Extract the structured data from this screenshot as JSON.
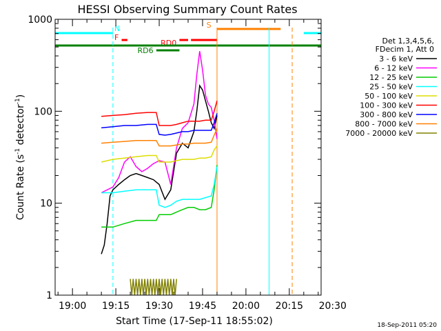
{
  "chart_data": {
    "type": "line",
    "title": "HESSI Observing Summary Count Rates",
    "xlabel": "Start Time (17-Sep-11 18:55:02)",
    "ylabel": "Count Rate (s⁻¹ detector⁻¹)",
    "ylabel_main": "Count Rate (s",
    "ylabel_mid": " detector",
    "ylabel_end": ")",
    "yscale": "log",
    "ylim": [
      1,
      1000
    ],
    "xlim_minutes": [
      -6,
      86
    ],
    "x_ticks": [
      {
        "m": 0,
        "label": "19:00"
      },
      {
        "m": 15,
        "label": "19:15"
      },
      {
        "m": 30,
        "label": "19:30"
      },
      {
        "m": 45,
        "label": "19:45"
      },
      {
        "m": 60,
        "label": "20:00"
      },
      {
        "m": 75,
        "label": "20:15"
      },
      {
        "m": 90,
        "label": "20:30"
      }
    ],
    "y_ticks": [
      {
        "v": 1,
        "label": "1"
      },
      {
        "v": 10,
        "label": "10"
      },
      {
        "v": 100,
        "label": "100"
      },
      {
        "v": 1000,
        "label": "1000"
      }
    ],
    "legend_header": [
      "Det 1,3,4,5,6,",
      "FDecim 1, Att 0"
    ],
    "series": [
      {
        "name": "3 - 6 keV",
        "color": "#000000",
        "x": [
          10,
          11,
          12,
          13,
          14,
          16,
          18,
          20,
          22,
          24,
          26,
          28,
          30,
          32,
          34,
          36,
          38,
          40,
          42,
          43,
          44,
          45,
          46,
          47,
          48,
          49,
          50
        ],
        "y": [
          2.8,
          3.5,
          6,
          12,
          14,
          16,
          18,
          20,
          21,
          20,
          19,
          18,
          16,
          11,
          14,
          35,
          45,
          40,
          60,
          100,
          190,
          170,
          130,
          100,
          75,
          65,
          90
        ]
      },
      {
        "name": "6 - 12 keV",
        "color": "#ff00ff",
        "x": [
          10,
          14,
          16,
          18,
          20,
          22,
          24,
          26,
          28,
          30,
          32,
          34,
          36,
          38,
          40,
          42,
          43,
          44,
          45,
          46,
          47,
          48,
          49,
          50
        ],
        "y": [
          13,
          15,
          19,
          28,
          32,
          25,
          22,
          24,
          27,
          29,
          28,
          16,
          40,
          65,
          75,
          120,
          250,
          450,
          280,
          150,
          120,
          110,
          80,
          50
        ]
      },
      {
        "name": "12 - 25 keV",
        "color": "#00cc00",
        "x": [
          10,
          14,
          18,
          22,
          26,
          29,
          30,
          32,
          34,
          36,
          38,
          40,
          42,
          44,
          46,
          48,
          49,
          50
        ],
        "y": [
          5.5,
          5.5,
          6,
          6.5,
          6.5,
          6.5,
          7.5,
          7.5,
          7.5,
          8,
          8.5,
          9,
          9,
          8.5,
          8.5,
          9,
          14,
          26
        ]
      },
      {
        "name": "25 - 50 keV",
        "color": "#00ffff",
        "x": [
          10,
          14,
          18,
          22,
          26,
          29,
          30,
          32,
          34,
          36,
          38,
          40,
          42,
          44,
          46,
          48,
          49,
          50
        ],
        "y": [
          13,
          13,
          13.5,
          14,
          14,
          14,
          9.5,
          9,
          9.5,
          10.5,
          11,
          11,
          11,
          11,
          11.5,
          12,
          16,
          25
        ]
      },
      {
        "name": "50 - 100 keV",
        "color": "#dddd00",
        "x": [
          10,
          14,
          18,
          22,
          26,
          29,
          30,
          32,
          34,
          36,
          38,
          40,
          42,
          44,
          46,
          48,
          49,
          50
        ],
        "y": [
          28,
          30,
          31,
          32,
          33,
          33,
          28,
          28,
          28,
          29,
          30,
          30,
          30,
          31,
          31,
          32,
          38,
          42
        ]
      },
      {
        "name": "100 - 300 keV",
        "color": "#ff0000",
        "x": [
          10,
          14,
          18,
          22,
          26,
          29,
          30,
          32,
          34,
          36,
          38,
          40,
          42,
          44,
          46,
          48,
          49,
          50
        ],
        "y": [
          88,
          90,
          92,
          95,
          97,
          97,
          70,
          70,
          70,
          72,
          75,
          78,
          78,
          78,
          80,
          80,
          100,
          130
        ]
      },
      {
        "name": "300 - 800 keV",
        "color": "#0000ff",
        "x": [
          10,
          14,
          18,
          22,
          26,
          29,
          30,
          32,
          34,
          36,
          38,
          40,
          42,
          44,
          46,
          48,
          49,
          50
        ],
        "y": [
          66,
          68,
          70,
          70,
          72,
          72,
          56,
          55,
          56,
          58,
          60,
          60,
          62,
          62,
          62,
          62,
          75,
          95
        ]
      },
      {
        "name": "800 - 7000 keV",
        "color": "#ff8000",
        "x": [
          10,
          14,
          18,
          22,
          26,
          29,
          30,
          32,
          34,
          36,
          38,
          40,
          42,
          44,
          46,
          48,
          49,
          50
        ],
        "y": [
          45,
          46,
          47,
          48,
          48,
          48,
          42,
          42,
          42,
          43,
          44,
          44,
          45,
          45,
          45,
          46,
          55,
          65
        ]
      },
      {
        "name": "7000 - 20000 keV",
        "color": "#808000",
        "x": [
          20,
          20.5,
          21,
          21.5,
          22,
          22.5,
          23,
          23.5,
          24,
          24.5,
          25,
          25.5,
          26,
          26.5,
          27,
          27.5,
          28,
          28.5,
          29,
          29.5,
          30,
          30.5,
          31,
          31.5,
          32,
          32.5,
          33,
          33.5,
          34,
          34.5,
          35,
          35.5,
          36
        ],
        "y": [
          1.5,
          1,
          1.5,
          1,
          1.5,
          1,
          1.5,
          1,
          1.5,
          1,
          1.5,
          1,
          1.5,
          1,
          1.5,
          1,
          1.5,
          1,
          1.5,
          1,
          1.5,
          1,
          1.5,
          1,
          1.5,
          1,
          1.5,
          1,
          1.5,
          1,
          1.5,
          1,
          1.5
        ]
      }
    ],
    "flag_bars": [
      {
        "label": "N",
        "color": "#00ffff",
        "segments": [
          [
            -6,
            14
          ],
          [
            80,
            86
          ]
        ]
      },
      {
        "label": "F",
        "color": "#ff0000",
        "segments": [
          [
            17,
            19
          ]
        ]
      },
      {
        "label": "RD0",
        "color": "#ff0000",
        "segments": [
          [
            37,
            40
          ],
          [
            41,
            50
          ]
        ]
      },
      {
        "label": "RD6",
        "color": "#008000",
        "segments": [
          [
            29,
            37
          ]
        ]
      },
      {
        "label": "S",
        "color": "#ff8000",
        "segments": [
          [
            50,
            72
          ]
        ]
      },
      {
        "label": "",
        "color": "#008000",
        "segments": [
          [
            -6,
            86
          ]
        ]
      }
    ],
    "vlines": [
      {
        "m": -6,
        "color": "#00ffff",
        "dash": false
      },
      {
        "m": 14,
        "color": "#00ffff",
        "dash": true
      },
      {
        "m": 50,
        "color": "#ff8000",
        "dash": false
      },
      {
        "m": 68,
        "color": "#00ffff",
        "dash": false
      },
      {
        "m": 76,
        "color": "#ff8000",
        "dash": true
      },
      {
        "m": 86,
        "color": "#00ffff",
        "dash": true
      }
    ],
    "timestamp": "18-Sep-2011 05:20",
    "grid": false,
    "legend_position": "right"
  }
}
